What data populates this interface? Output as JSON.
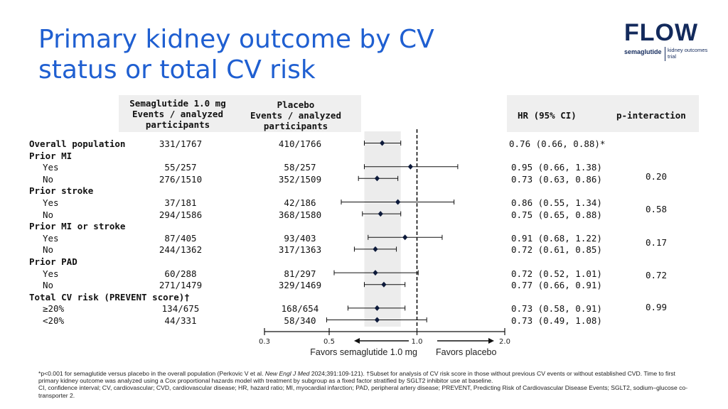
{
  "title": "Primary kidney outcome by CV status or total CV risk",
  "logo": {
    "word": "FLOW",
    "drug": "semaglutide",
    "trial": "kidney outcomes trial"
  },
  "headers": {
    "sema": [
      "Semaglutide 1.0 mg",
      "Events / analyzed",
      "participants"
    ],
    "placebo": [
      "Placebo",
      "Events / analyzed",
      "participants"
    ],
    "hr": "HR (95% CI)",
    "pint": "p-interaction"
  },
  "rows": [
    {
      "label": "Overall population",
      "bold": true,
      "indent": false,
      "sema": "331/1767",
      "placebo": "410/1766",
      "hr_text": "0.76 (0.66, 0.88)*"
    },
    {
      "label": "Prior MI",
      "bold": true,
      "indent": false
    },
    {
      "label": "Yes",
      "bold": false,
      "indent": true,
      "sema": "55/257",
      "placebo": "58/257",
      "hr_text": "0.95 (0.66, 1.38)"
    },
    {
      "label": "No",
      "bold": false,
      "indent": true,
      "sema": "276/1510",
      "placebo": "352/1509",
      "hr_text": "0.73 (0.63, 0.86)"
    },
    {
      "label": "Prior stroke",
      "bold": true,
      "indent": false
    },
    {
      "label": "Yes",
      "bold": false,
      "indent": true,
      "sema": "37/181",
      "placebo": "42/186",
      "hr_text": "0.86 (0.55, 1.34)"
    },
    {
      "label": "No",
      "bold": false,
      "indent": true,
      "sema": "294/1586",
      "placebo": "368/1580",
      "hr_text": "0.75 (0.65, 0.88)"
    },
    {
      "label": "Prior MI or stroke",
      "bold": true,
      "indent": false
    },
    {
      "label": "Yes",
      "bold": false,
      "indent": true,
      "sema": "87/405",
      "placebo": "93/403",
      "hr_text": "0.91 (0.68, 1.22)"
    },
    {
      "label": "No",
      "bold": false,
      "indent": true,
      "sema": "244/1362",
      "placebo": "317/1363",
      "hr_text": "0.72 (0.61, 0.85)"
    },
    {
      "label": "Prior PAD",
      "bold": true,
      "indent": false
    },
    {
      "label": "Yes",
      "bold": false,
      "indent": true,
      "sema": "60/288",
      "placebo": "81/297",
      "hr_text": "0.72 (0.52, 1.01)"
    },
    {
      "label": "No",
      "bold": false,
      "indent": true,
      "sema": "271/1479",
      "placebo": "329/1469",
      "hr_text": "0.77 (0.66, 0.91)"
    },
    {
      "label": "Total CV risk (PREVENT score)†",
      "bold": true,
      "indent": false
    },
    {
      "label": "≥20%",
      "bold": false,
      "indent": true,
      "sema": "134/675",
      "placebo": "168/654",
      "hr_text": "0.73 (0.58, 0.91)"
    },
    {
      "label": "<20%",
      "bold": false,
      "indent": true,
      "sema": "44/331",
      "placebo": "58/340",
      "hr_text": "0.73 (0.49, 1.08)"
    }
  ],
  "p_interactions": [
    {
      "group": "Prior MI",
      "value": "0.20"
    },
    {
      "group": "Prior stroke",
      "value": "0.58"
    },
    {
      "group": "Prior MI or stroke",
      "value": "0.17"
    },
    {
      "group": "Prior PAD",
      "value": "0.72"
    },
    {
      "group": "Total CV risk (PREVENT score)",
      "value": "0.99"
    }
  ],
  "chart_data": {
    "type": "forest",
    "x_scale": "log",
    "xlim": [
      0.3,
      2.0
    ],
    "ticks": [
      0.3,
      0.5,
      1.0,
      2.0
    ],
    "tick_labels": [
      "0.3",
      "0.5",
      "1.0",
      "2.0"
    ],
    "reference_line": 1.0,
    "overall_ci_band": [
      0.66,
      0.88
    ],
    "left_label": "Favors semaglutide 1.0 mg",
    "right_label": "Favors placebo",
    "series": [
      {
        "name": "Overall population",
        "hr": 0.76,
        "lo": 0.66,
        "hi": 0.88
      },
      {
        "name": "Prior MI: Yes",
        "hr": 0.95,
        "lo": 0.66,
        "hi": 1.38
      },
      {
        "name": "Prior MI: No",
        "hr": 0.73,
        "lo": 0.63,
        "hi": 0.86
      },
      {
        "name": "Prior stroke: Yes",
        "hr": 0.86,
        "lo": 0.55,
        "hi": 1.34
      },
      {
        "name": "Prior stroke: No",
        "hr": 0.75,
        "lo": 0.65,
        "hi": 0.88
      },
      {
        "name": "Prior MI or stroke: Yes",
        "hr": 0.91,
        "lo": 0.68,
        "hi": 1.22
      },
      {
        "name": "Prior MI or stroke: No",
        "hr": 0.72,
        "lo": 0.61,
        "hi": 0.85
      },
      {
        "name": "Prior PAD: Yes",
        "hr": 0.72,
        "lo": 0.52,
        "hi": 1.01
      },
      {
        "name": "Prior PAD: No",
        "hr": 0.77,
        "lo": 0.66,
        "hi": 0.91
      },
      {
        "name": "Total CV risk ≥20%",
        "hr": 0.73,
        "lo": 0.58,
        "hi": 0.91
      },
      {
        "name": "Total CV risk <20%",
        "hr": 0.73,
        "lo": 0.49,
        "hi": 1.08
      }
    ]
  },
  "footnote": {
    "part1": "*p<0.001 for semaglutide versus placebo in the overall population (Perkovic V et al. ",
    "journal": "New Engl J Med",
    "part2": " 2024;391:109-121). †Subset for analysis of CV risk score in those without previous CV events or without established CVD. Time to first primary kidney outcome was analyzed using a Cox proportional hazards model with treatment by subgroup as a fixed factor stratified by SGLT2 inhibitor use at baseline.",
    "abbrev": "CI, confidence interval; CV, cardiovascular; CVD, cardiovascular disease; HR, hazard ratio; MI, myocardial infarction; PAD, peripheral artery disease; PREVENT, Predicting Risk of Cardiovascular Disease Events; SGLT2, sodium–glucose co-transporter 2."
  }
}
